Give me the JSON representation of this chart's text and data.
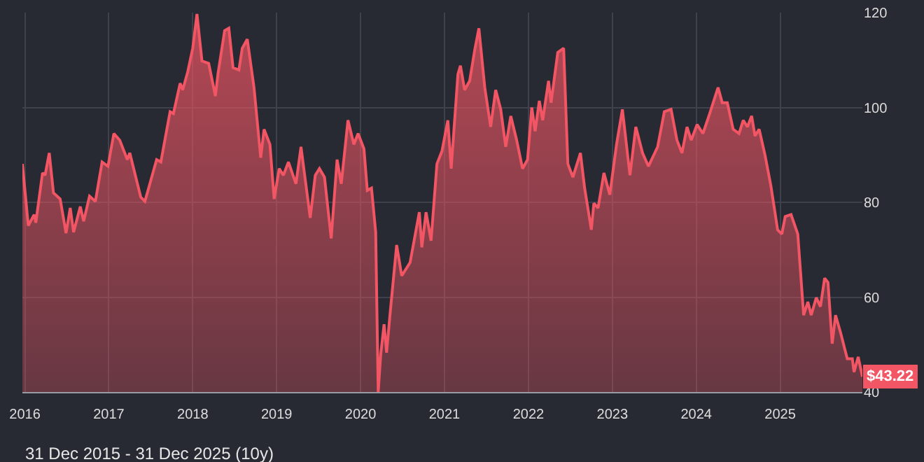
{
  "chart_data": {
    "type": "area",
    "x": [
      2015.97,
      2016.04,
      2016.11,
      2016.13,
      2016.21,
      2016.24,
      2016.29,
      2016.34,
      2016.42,
      2016.49,
      2016.54,
      2016.58,
      2016.66,
      2016.7,
      2016.77,
      2016.84,
      2016.92,
      2016.99,
      2017.06,
      2017.13,
      2017.22,
      2017.25,
      2017.38,
      2017.43,
      2017.57,
      2017.62,
      2017.73,
      2017.77,
      2017.85,
      2017.88,
      2017.94,
      2018.0,
      2018.05,
      2018.11,
      2018.19,
      2018.27,
      2018.3,
      2018.38,
      2018.43,
      2018.48,
      2018.55,
      2018.59,
      2018.65,
      2018.73,
      2018.81,
      2018.85,
      2018.92,
      2018.97,
      2019.03,
      2019.08,
      2019.14,
      2019.23,
      2019.29,
      2019.4,
      2019.46,
      2019.51,
      2019.57,
      2019.65,
      2019.72,
      2019.77,
      2019.85,
      2019.92,
      2019.97,
      2020.04,
      2020.08,
      2020.13,
      2020.18,
      2020.21,
      2020.24,
      2020.28,
      2020.31,
      2020.35,
      2020.43,
      2020.49,
      2020.59,
      2020.7,
      2020.73,
      2020.78,
      2020.84,
      2020.91,
      2020.97,
      2021.04,
      2021.08,
      2021.16,
      2021.19,
      2021.24,
      2021.3,
      2021.36,
      2021.41,
      2021.48,
      2021.55,
      2021.61,
      2021.67,
      2021.73,
      2021.79,
      2021.86,
      2021.93,
      2021.99,
      2022.04,
      2022.08,
      2022.13,
      2022.17,
      2022.24,
      2022.27,
      2022.35,
      2022.42,
      2022.47,
      2022.53,
      2022.62,
      2022.67,
      2022.75,
      2022.78,
      2022.83,
      2022.9,
      2022.97,
      2023.05,
      2023.12,
      2023.21,
      2023.28,
      2023.36,
      2023.43,
      2023.54,
      2023.62,
      2023.7,
      2023.77,
      2023.83,
      2023.89,
      2023.94,
      2024.01,
      2024.08,
      2024.16,
      2024.26,
      2024.31,
      2024.37,
      2024.44,
      2024.51,
      2024.56,
      2024.61,
      2024.66,
      2024.7,
      2024.75,
      2024.82,
      2024.89,
      2024.97,
      2025.02,
      2025.06,
      2025.13,
      2025.21,
      2025.28,
      2025.33,
      2025.37,
      2025.43,
      2025.48,
      2025.53,
      2025.57,
      2025.62,
      2025.66,
      2025.72,
      2025.8,
      2025.86,
      2025.88,
      2025.93,
      2025.98
    ],
    "series": [
      {
        "color": "#f25563",
        "values": [
          88.1,
          75.1,
          77.4,
          75.7,
          86.2,
          85.7,
          90.4,
          82.0,
          80.7,
          73.5,
          78.8,
          73.7,
          79.1,
          76.0,
          81.3,
          80.2,
          88.5,
          87.6,
          94.5,
          93.1,
          89.0,
          90.4,
          81.1,
          80.2,
          89.0,
          88.5,
          99.1,
          98.7,
          105.1,
          103.7,
          107.5,
          112.5,
          119.7,
          109.8,
          109.3,
          102.4,
          107.0,
          116.2,
          116.7,
          108.4,
          107.9,
          112.5,
          114.4,
          104.2,
          89.4,
          95.4,
          92.2,
          80.7,
          87.1,
          85.7,
          88.5,
          83.9,
          91.7,
          76.7,
          85.7,
          87.1,
          85.3,
          72.4,
          89.0,
          83.9,
          97.3,
          92.2,
          94.5,
          91.3,
          82.5,
          83.0,
          73.7,
          40.0,
          47.9,
          54.3,
          48.3,
          56.2,
          71.0,
          64.5,
          67.3,
          77.9,
          70.5,
          77.9,
          71.9,
          88.1,
          90.8,
          97.3,
          87.1,
          107.0,
          108.8,
          103.7,
          105.6,
          112.1,
          116.7,
          104.2,
          95.9,
          103.7,
          99.6,
          91.7,
          98.2,
          93.1,
          87.1,
          89.0,
          100.0,
          95.0,
          101.4,
          97.3,
          105.6,
          101.0,
          111.6,
          112.5,
          88.1,
          85.3,
          90.4,
          83.0,
          74.2,
          79.8,
          78.8,
          86.2,
          81.6,
          92.2,
          99.6,
          85.7,
          95.9,
          90.4,
          87.6,
          91.7,
          99.1,
          99.6,
          93.1,
          90.4,
          95.9,
          93.1,
          96.4,
          94.5,
          98.7,
          104.2,
          101.0,
          101.0,
          95.4,
          94.5,
          97.3,
          95.9,
          98.2,
          94.0,
          95.4,
          89.9,
          83.4,
          74.2,
          73.3,
          77.0,
          77.4,
          73.3,
          56.2,
          59.0,
          56.2,
          59.9,
          58.0,
          64.0,
          63.1,
          50.2,
          56.2,
          52.5,
          47.0,
          47.0,
          44.2,
          47.4,
          43.22
        ]
      }
    ],
    "xlim": [
      2015.97,
      2025.98
    ],
    "xticks": [
      2016,
      2017,
      2018,
      2019,
      2020,
      2021,
      2022,
      2023,
      2024,
      2025
    ],
    "ylim": [
      40,
      120
    ],
    "yticks": [
      40,
      60,
      80,
      100,
      120
    ],
    "grid": true,
    "marker": "none",
    "line_style": "solid",
    "annotations": [
      {
        "text": "$43.22",
        "x": 2025.98,
        "y": 43.22
      },
      "31 Dec 2015 - 31 Dec 2025 (10y)"
    ]
  }
}
